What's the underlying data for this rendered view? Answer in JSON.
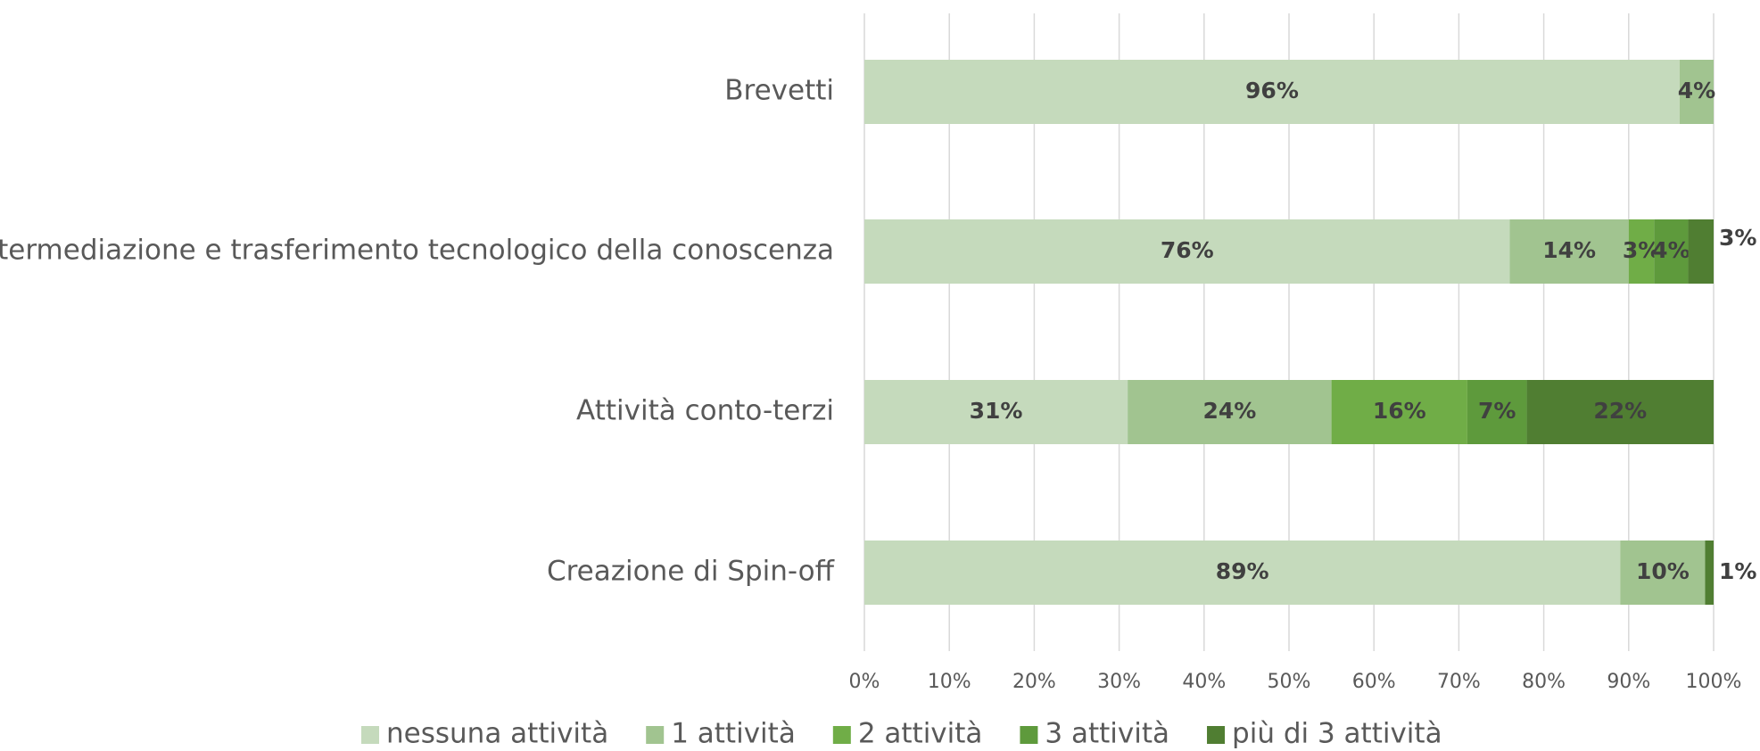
{
  "chart_data": {
    "type": "stacked-bar-horizontal",
    "categories": [
      "Brevetti",
      "Intermediazione e trasferimento tecnologico della conoscenza",
      "Attività conto-terzi",
      "Creazione di Spin-off"
    ],
    "series": [
      {
        "name": "nessuna attività",
        "color": "#c5dabc",
        "values": [
          96,
          76,
          31,
          89
        ],
        "value_labels": [
          "96%",
          "76%",
          "31%",
          "89%"
        ]
      },
      {
        "name": "1 attività",
        "color": "#a1c490",
        "values": [
          4,
          14,
          24,
          10
        ],
        "value_labels": [
          "4%",
          "14%",
          "24%",
          "10%"
        ]
      },
      {
        "name": "2 attività",
        "color": "#70ad47",
        "values": [
          null,
          3,
          16,
          null
        ],
        "value_labels": [
          null,
          "3%",
          "16%",
          null
        ]
      },
      {
        "name": "3 attività",
        "color": "#5e9a3c",
        "values": [
          null,
          4,
          7,
          null
        ],
        "value_labels": [
          null,
          "4%",
          "7%",
          null
        ]
      },
      {
        "name": "più di 3 attività",
        "color": "#507e32",
        "values": [
          null,
          3,
          22,
          1
        ],
        "value_labels": [
          null,
          "3%",
          "22%",
          "1%"
        ]
      }
    ],
    "xlim": [
      0,
      100
    ],
    "xticks": [
      {
        "value": 0,
        "label": "0%"
      },
      {
        "value": 10,
        "label": "10%"
      },
      {
        "value": 20,
        "label": "20%"
      },
      {
        "value": 30,
        "label": "30%"
      },
      {
        "value": 40,
        "label": "40%"
      },
      {
        "value": 50,
        "label": "50%"
      },
      {
        "value": 60,
        "label": "60%"
      },
      {
        "value": 70,
        "label": "70%"
      },
      {
        "value": 80,
        "label": "80%"
      },
      {
        "value": 90,
        "label": "90%"
      },
      {
        "value": 100,
        "label": "100%"
      }
    ],
    "grid": true,
    "legend": "bottom"
  }
}
